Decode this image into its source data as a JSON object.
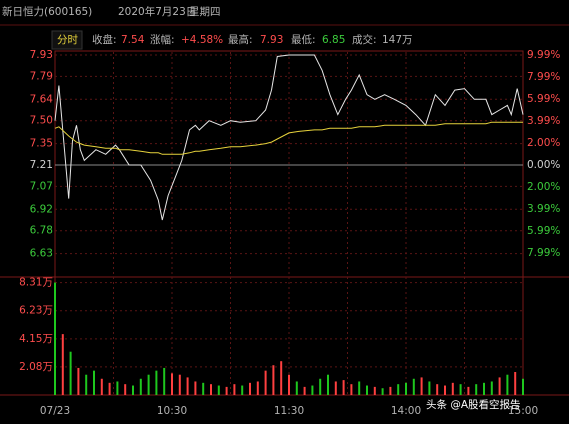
{
  "header": {
    "stock": "新日恒力(600165)",
    "date": "2020年7月23日",
    "weekday": "星期四"
  },
  "info": {
    "tab": "分时",
    "close_label": "收盘:",
    "close": "7.54",
    "change_label": "涨幅:",
    "change": "+4.58%",
    "high_label": "最高:",
    "high": "7.93",
    "low_label": "最低:",
    "low": "6.85",
    "volume_label": "成交:",
    "volume": "147万"
  },
  "watermark": "头条 @A股看空报告",
  "chart_data": [
    {
      "type": "line",
      "prev_close": 7.21,
      "x": [
        0,
        2,
        7,
        9,
        11,
        13,
        15,
        21,
        26,
        31,
        33,
        38,
        44,
        49,
        53,
        55,
        58,
        62,
        65,
        69,
        72,
        74,
        79,
        85,
        90,
        95,
        103,
        108,
        111,
        114,
        120,
        125,
        133,
        137,
        141,
        145,
        149,
        152,
        156,
        160,
        164,
        169,
        174,
        180,
        185,
        190,
        195,
        200,
        205,
        210,
        215,
        221,
        224,
        228,
        232,
        234,
        237,
        240
      ],
      "xlim": [
        0,
        240
      ],
      "xgrid": [
        30,
        60,
        90,
        120,
        150,
        180,
        210
      ],
      "ylim": [
        6.49,
        7.93
      ],
      "yticks": [
        7.93,
        7.79,
        7.64,
        {
          "value": 7.5,
          "label": "7.50"
        },
        7.35,
        7.21,
        7.07,
        6.92,
        6.78,
        6.63
      ],
      "y2lim": [
        -9.99,
        9.99
      ],
      "y2ticks": [
        {
          "value": 9.99,
          "label": "9.99%"
        },
        {
          "value": 7.99,
          "label": "7.99%"
        },
        {
          "value": 5.99,
          "label": "5.99%"
        },
        {
          "value": 3.99,
          "label": "3.99%"
        },
        {
          "value": 2,
          "label": "2.00%"
        },
        {
          "value": 0,
          "label": "0.00%"
        },
        {
          "value": -2,
          "label": "2.00%"
        },
        {
          "value": -3.99,
          "label": "3.99%"
        },
        {
          "value": -5.99,
          "label": "5.99%"
        },
        {
          "value": -7.99,
          "label": "7.99%"
        }
      ],
      "grid": true,
      "series": [
        {
          "color": "#e6e6e6",
          "values": [
            7.5,
            7.73,
            6.99,
            7.37,
            7.47,
            7.31,
            7.24,
            7.31,
            7.28,
            7.34,
            7.31,
            7.21,
            7.21,
            7.11,
            6.98,
            6.85,
            7.01,
            7.14,
            7.24,
            7.44,
            7.47,
            7.44,
            7.5,
            7.47,
            7.5,
            7.49,
            7.5,
            7.57,
            7.7,
            7.92,
            7.93,
            7.93,
            7.93,
            7.83,
            7.67,
            7.54,
            7.64,
            7.7,
            7.8,
            7.67,
            7.64,
            7.67,
            7.64,
            7.6,
            7.54,
            7.47,
            7.67,
            7.6,
            7.7,
            7.71,
            7.64,
            7.64,
            7.54,
            7.57,
            7.6,
            7.54,
            7.71,
            7.54
          ]
        },
        {
          "color": "#e6d23c",
          "values": [
            7.45,
            7.46,
            7.4,
            7.38,
            7.36,
            7.35,
            7.34,
            7.33,
            7.32,
            7.32,
            7.31,
            7.31,
            7.3,
            7.29,
            7.29,
            7.28,
            7.28,
            7.28,
            7.28,
            7.29,
            7.3,
            7.3,
            7.31,
            7.32,
            7.33,
            7.33,
            7.34,
            7.35,
            7.36,
            7.38,
            7.42,
            7.43,
            7.44,
            7.44,
            7.45,
            7.45,
            7.45,
            7.45,
            7.46,
            7.46,
            7.46,
            7.47,
            7.47,
            7.47,
            7.47,
            7.47,
            7.47,
            7.48,
            7.48,
            7.48,
            7.48,
            7.48,
            7.49,
            7.49,
            7.49,
            7.49,
            7.49,
            7.49
          ]
        }
      ]
    },
    {
      "type": "bar",
      "x": [
        0,
        4,
        8,
        12,
        16,
        20,
        24,
        28,
        32,
        36,
        40,
        44,
        48,
        52,
        56,
        60,
        64,
        68,
        72,
        76,
        80,
        84,
        88,
        92,
        96,
        100,
        104,
        108,
        112,
        116,
        120,
        124,
        128,
        132,
        136,
        140,
        144,
        148,
        152,
        156,
        160,
        164,
        168,
        172,
        176,
        180,
        184,
        188,
        192,
        196,
        200,
        204,
        208,
        212,
        216,
        220,
        224,
        228,
        232,
        236,
        240
      ],
      "xlim": [
        0,
        240
      ],
      "xgrid": [
        30,
        60,
        90,
        120,
        150,
        180,
        210
      ],
      "xticks": [
        {
          "value": 0,
          "label": "07/23"
        },
        {
          "value": 60,
          "label": "10:30"
        },
        {
          "value": 120,
          "label": "11:30"
        },
        {
          "value": 180,
          "label": "14:00"
        },
        {
          "value": 240,
          "label": "15:00"
        }
      ],
      "ylim": [
        0,
        8.5
      ],
      "yticks": [
        {
          "value": 8.31,
          "label": "8.31万"
        },
        {
          "value": 6.23,
          "label": "6.23万"
        },
        {
          "value": 4.15,
          "label": "4.15万"
        },
        {
          "value": 2.08,
          "label": "2.08万"
        }
      ],
      "grid": true,
      "values": [
        8.31,
        4.5,
        3.2,
        2.0,
        1.5,
        1.8,
        1.2,
        0.9,
        1.0,
        0.8,
        0.7,
        1.2,
        1.5,
        1.8,
        2.0,
        1.6,
        1.5,
        1.3,
        1.0,
        0.9,
        0.8,
        0.7,
        0.6,
        0.8,
        0.7,
        0.9,
        1.0,
        1.8,
        2.2,
        2.5,
        1.5,
        1.0,
        0.6,
        0.7,
        1.2,
        1.5,
        1.0,
        1.1,
        0.8,
        1.0,
        0.7,
        0.6,
        0.5,
        0.6,
        0.8,
        0.9,
        1.2,
        1.3,
        1.0,
        0.8,
        0.7,
        0.9,
        0.8,
        0.6,
        0.8,
        0.9,
        1.0,
        1.3,
        1.5,
        1.7,
        1.2
      ],
      "colors": [
        "#1ec81e",
        "#ff4040",
        "#1ec81e",
        "#ff4040",
        "#1ec81e",
        "#1ec81e",
        "#ff4040",
        "#ff4040",
        "#1ec81e",
        "#ff4040",
        "#1ec81e",
        "#1ec81e",
        "#1ec81e",
        "#1ec81e",
        "#1ec81e",
        "#ff4040",
        "#ff4040",
        "#ff4040",
        "#ff4040",
        "#1ec81e",
        "#ff4040",
        "#1ec81e",
        "#ff4040",
        "#ff4040",
        "#1ec81e",
        "#ff4040",
        "#ff4040",
        "#ff4040",
        "#ff4040",
        "#ff4040",
        "#ff4040",
        "#1ec81e",
        "#ff4040",
        "#1ec81e",
        "#1ec81e",
        "#1ec81e",
        "#ff4040",
        "#ff4040",
        "#ff4040",
        "#1ec81e",
        "#1ec81e",
        "#ff4040",
        "#1ec81e",
        "#ff4040",
        "#1ec81e",
        "#1ec81e",
        "#1ec81e",
        "#ff4040",
        "#1ec81e",
        "#ff4040",
        "#ff4040",
        "#ff4040",
        "#1ec81e",
        "#ff4040",
        "#1ec81e",
        "#1ec81e",
        "#1ec81e",
        "#ff4040",
        "#1ec81e",
        "#ff4040",
        "#1ec81e"
      ]
    }
  ]
}
